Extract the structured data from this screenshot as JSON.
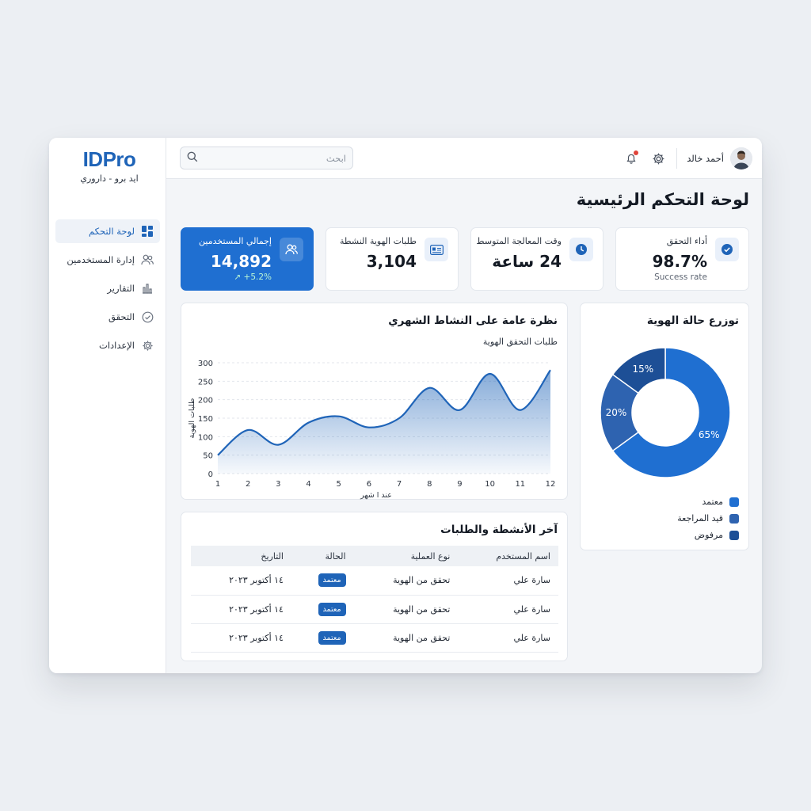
{
  "brand": {
    "name": "IDPro",
    "subtitle": "ايد برو - داروري"
  },
  "sidebar": {
    "items": [
      {
        "label": "لوحة التحكم",
        "icon": "dashboard-icon",
        "active": true
      },
      {
        "label": "إدارة المستخدمين",
        "icon": "users-icon",
        "active": false
      },
      {
        "label": "التقارير",
        "icon": "bar-chart-icon",
        "active": false
      },
      {
        "label": "التحقق",
        "icon": "check-circle-icon",
        "active": false
      },
      {
        "label": "الإعدادات",
        "icon": "gear-icon",
        "active": false
      }
    ]
  },
  "topbar": {
    "search_placeholder": "ابحث",
    "user_name": "أحمد خالد"
  },
  "page_title": "لوحة التحكم الرئيسية",
  "stats": [
    {
      "label": "إجمالي المستخدمين",
      "value": "14,892",
      "sub": "↗ +5.2%",
      "icon": "users-icon",
      "primary": true
    },
    {
      "label": "طلبات الهوية النشطة",
      "value": "3,104",
      "sub": "",
      "icon": "id-card-icon",
      "primary": false
    },
    {
      "label": "وقت المعالجة المتوسط",
      "value": "24 ساعة",
      "sub": "",
      "icon": "clock-icon",
      "primary": false
    },
    {
      "label": "أداء التحقق",
      "value": "98.7%",
      "sub": "Success rate",
      "icon": "check-badge-icon",
      "primary": false
    }
  ],
  "activity_chart": {
    "title": "نظرة عامة على النشاط الشهري",
    "subtitle": "طلبات التحقق الهوية",
    "chart_data": {
      "type": "area",
      "x": [
        1,
        2,
        3,
        4,
        5,
        6,
        7,
        8,
        9,
        10,
        11,
        12
      ],
      "series": [
        {
          "values": [
            50,
            118,
            78,
            138,
            155,
            125,
            150,
            232,
            172,
            270,
            172,
            280
          ]
        }
      ],
      "xlabel": "عند ا شهر",
      "ylabel": "طلبات الهوية",
      "xlim": [
        1,
        12
      ],
      "ylim": [
        0,
        300
      ],
      "yticks": [
        0,
        50,
        100,
        150,
        200,
        250,
        300
      ],
      "grid": true,
      "color": "#1f64b8"
    }
  },
  "distribution_chart": {
    "title": "توزرع حالة الهوية",
    "chart_data": {
      "type": "pie",
      "categories": [
        "معتمد",
        "قيد المراجعة",
        "مرفوض"
      ],
      "values": [
        65,
        20,
        15
      ],
      "labels": [
        "65%",
        "20%",
        "15%"
      ],
      "colors": [
        "#1f6fd1",
        "#2e63b0",
        "#1d4f96"
      ],
      "legend": "bottom-right"
    }
  },
  "recent": {
    "title": "آخر الأنشطة والطلبات",
    "headers": [
      "اسم المستخدم",
      "نوع العملية",
      "الحالة",
      "التاريخ"
    ],
    "rows": [
      {
        "user": "سارة علي",
        "type": "تحقق من الهوية",
        "status": "معتمد",
        "date": "١٤ أكتوبر ٢٠٢٣"
      },
      {
        "user": "سارة علي",
        "type": "تحقق من الهوية",
        "status": "معتمد",
        "date": "١٤ أكتوبر ٢٠٢٣"
      },
      {
        "user": "سارة علي",
        "type": "تحقق من الهوية",
        "status": "معتمد",
        "date": "١٤ أكتوبر ٢٠٢٣"
      }
    ]
  }
}
